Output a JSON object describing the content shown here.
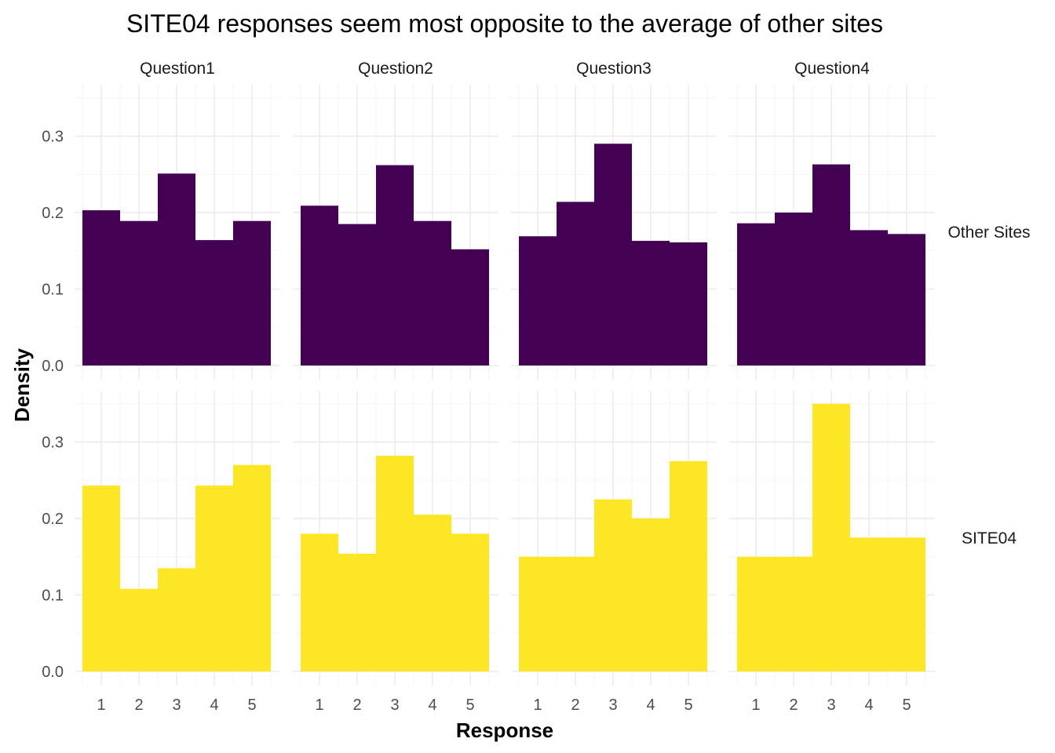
{
  "chart_data": {
    "type": "bar",
    "title": "SITE04 responses seem most opposite to the average of other sites",
    "xlabel": "Response",
    "ylabel": "Density",
    "x": [
      1,
      2,
      3,
      4,
      5
    ],
    "x_tick_labels": [
      "1",
      "2",
      "3",
      "4",
      "5"
    ],
    "ylim": [
      0,
      0.36
    ],
    "y_ticks": [
      0,
      0.1,
      0.2,
      0.3
    ],
    "y_tick_labels": [
      "0.0",
      "0.1",
      "0.2",
      "0.3"
    ],
    "grid": true,
    "facet_columns": [
      "Question1",
      "Question2",
      "Question3",
      "Question4"
    ],
    "facet_rows": [
      {
        "name": "Other Sites",
        "color": "#440154"
      },
      {
        "name": "SITE04",
        "color": "#FDE725"
      }
    ],
    "panels": [
      {
        "row": "Other Sites",
        "column": "Question1",
        "values": [
          0.203,
          0.189,
          0.251,
          0.164,
          0.189
        ]
      },
      {
        "row": "Other Sites",
        "column": "Question2",
        "values": [
          0.209,
          0.185,
          0.262,
          0.189,
          0.152
        ]
      },
      {
        "row": "Other Sites",
        "column": "Question3",
        "values": [
          0.169,
          0.214,
          0.29,
          0.163,
          0.161
        ]
      },
      {
        "row": "Other Sites",
        "column": "Question4",
        "values": [
          0.186,
          0.2,
          0.263,
          0.177,
          0.172
        ]
      },
      {
        "row": "SITE04",
        "column": "Question1",
        "values": [
          0.243,
          0.108,
          0.135,
          0.243,
          0.27
        ]
      },
      {
        "row": "SITE04",
        "column": "Question2",
        "values": [
          0.18,
          0.154,
          0.282,
          0.205,
          0.18
        ]
      },
      {
        "row": "SITE04",
        "column": "Question3",
        "values": [
          0.15,
          0.15,
          0.225,
          0.2,
          0.275
        ]
      },
      {
        "row": "SITE04",
        "column": "Question4",
        "values": [
          0.15,
          0.15,
          0.35,
          0.175,
          0.175
        ]
      }
    ]
  }
}
